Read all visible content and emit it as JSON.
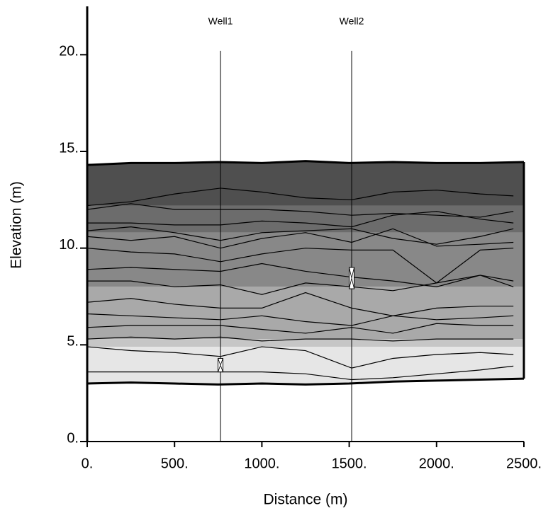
{
  "chart_data": {
    "type": "cross-section",
    "xlabel": "Distance (m)",
    "ylabel": "Elevation (m)",
    "xlim": [
      0,
      2500
    ],
    "ylim": [
      0,
      22.5
    ],
    "xticks": [
      {
        "value": 0,
        "label": "0."
      },
      {
        "value": 500,
        "label": "500."
      },
      {
        "value": 1000,
        "label": "1000."
      },
      {
        "value": 1500,
        "label": "1500."
      },
      {
        "value": 2000,
        "label": "2000."
      },
      {
        "value": 2500,
        "label": "2500."
      }
    ],
    "yticks": [
      {
        "value": 0,
        "label": "0."
      },
      {
        "value": 5,
        "label": "5."
      },
      {
        "value": 10,
        "label": "10."
      },
      {
        "value": 15,
        "label": "15."
      },
      {
        "value": 20,
        "label": "20."
      }
    ],
    "wells": [
      {
        "name": "Well1",
        "x": 763,
        "top": 20.2,
        "screen": [
          3.6,
          4.3
        ]
      },
      {
        "name": "Well2",
        "x": 1514,
        "top": 20.2,
        "screen": [
          7.9,
          9.0
        ]
      }
    ],
    "surface_x": [
      0,
      250,
      500,
      750,
      1000,
      1250,
      1500,
      1750,
      2000,
      2250,
      2500
    ],
    "top_surface": [
      14.3,
      14.4,
      14.4,
      14.45,
      14.4,
      14.5,
      14.4,
      14.45,
      14.4,
      14.4,
      14.45
    ],
    "bottom_surface": [
      3.0,
      3.05,
      3.0,
      2.95,
      3.0,
      2.95,
      3.0,
      3.1,
      3.15,
      3.2,
      3.25
    ],
    "bands": [
      {
        "bottom": 12.2,
        "top": 14.5,
        "color": "#4f4f4f"
      },
      {
        "bottom": 10.8,
        "top": 12.2,
        "color": "#6c6c6c"
      },
      {
        "bottom": 8.0,
        "top": 10.8,
        "color": "#888888"
      },
      {
        "bottom": 5.3,
        "top": 8.0,
        "color": "#a9a9a9"
      },
      {
        "bottom": 4.9,
        "top": 5.3,
        "color": "#c6c6c6"
      },
      {
        "bottom": 2.9,
        "top": 4.9,
        "color": "#e6e6e6"
      }
    ],
    "line_color": "#000000",
    "x": [
      0,
      250,
      500,
      763,
      1000,
      1250,
      1514,
      1750,
      2000,
      2250,
      2440
    ],
    "series": [
      {
        "values": [
          12.2,
          12.4,
          12.8,
          13.1,
          12.9,
          12.6,
          12.5,
          12.9,
          13.0,
          12.8,
          12.7
        ]
      },
      {
        "values": [
          12.0,
          12.3,
          12.0,
          12.0,
          12.0,
          11.9,
          11.7,
          11.8,
          11.7,
          11.6,
          11.9
        ]
      },
      {
        "values": [
          11.3,
          11.3,
          11.2,
          11.2,
          11.4,
          11.3,
          11.1,
          11.7,
          11.9,
          11.5,
          11.3
        ]
      },
      {
        "values": [
          10.9,
          11.1,
          10.8,
          10.4,
          10.8,
          10.9,
          11.0,
          10.5,
          10.2,
          10.6,
          11.0
        ]
      },
      {
        "values": [
          10.6,
          10.4,
          10.6,
          10.0,
          10.5,
          10.8,
          10.3,
          11.0,
          10.1,
          10.2,
          10.3
        ]
      },
      {
        "values": [
          10.0,
          9.8,
          9.7,
          9.3,
          9.7,
          10.0,
          9.9,
          9.9,
          8.2,
          9.9,
          10.0
        ]
      },
      {
        "values": [
          8.9,
          9.0,
          8.9,
          8.8,
          9.2,
          8.8,
          8.5,
          8.3,
          8.0,
          8.6,
          8.3
        ]
      },
      {
        "values": [
          8.3,
          8.3,
          8.0,
          8.1,
          7.6,
          8.2,
          8.0,
          7.8,
          8.2,
          8.6,
          8.0
        ]
      },
      {
        "values": [
          7.2,
          7.4,
          7.1,
          6.9,
          6.9,
          7.7,
          6.9,
          6.5,
          6.9,
          7.0,
          7.0
        ]
      },
      {
        "values": [
          6.6,
          6.5,
          6.4,
          6.3,
          6.5,
          6.2,
          6.0,
          6.5,
          6.3,
          6.4,
          6.5
        ]
      },
      {
        "values": [
          5.9,
          6.0,
          6.0,
          6.0,
          5.8,
          5.6,
          5.9,
          5.6,
          6.1,
          6.0,
          6.0
        ]
      },
      {
        "values": [
          5.3,
          5.4,
          5.3,
          5.4,
          5.2,
          5.3,
          5.3,
          5.2,
          5.3,
          5.3,
          5.3
        ]
      },
      {
        "values": [
          4.9,
          4.7,
          4.6,
          4.4,
          4.9,
          4.7,
          3.8,
          4.3,
          4.5,
          4.6,
          4.5
        ]
      },
      {
        "values": [
          3.6,
          3.6,
          3.6,
          3.6,
          3.6,
          3.5,
          3.2,
          3.3,
          3.5,
          3.7,
          3.9
        ]
      }
    ]
  }
}
